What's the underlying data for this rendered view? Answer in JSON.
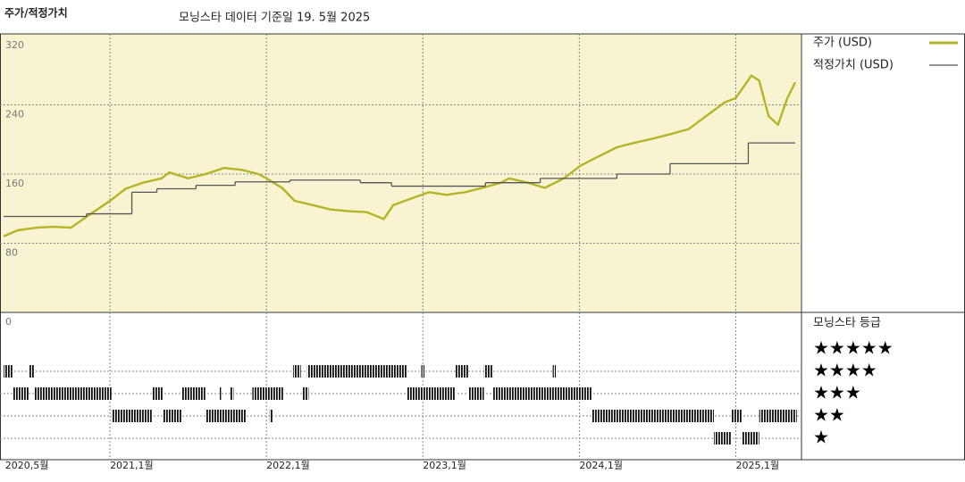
{
  "chart_data": {
    "type": "line",
    "title": "주가/적정가치",
    "subtitle": "모닝스타 데이터 기준일 19. 5월 2025",
    "xlim": [
      2020.32,
      2025.42
    ],
    "xticks": [
      {
        "value": 2020.33,
        "label": "2020,5월"
      },
      {
        "value": 2021,
        "label": "2021,1월"
      },
      {
        "value": 2022,
        "label": "2022,1월"
      },
      {
        "value": 2023,
        "label": "2023,1월"
      },
      {
        "value": 2024,
        "label": "2024,1월"
      },
      {
        "value": 2025,
        "label": "2025,1월"
      }
    ],
    "ylim": [
      0,
      320
    ],
    "yticks": [
      0,
      80,
      160,
      240,
      320
    ],
    "grid": true,
    "series": [
      {
        "name": "주가 (USD)",
        "color": "#b3b526",
        "x": [
          2020.32,
          2020.41,
          2020.53,
          2020.64,
          2020.75,
          2020.87,
          2021.0,
          2021.1,
          2021.21,
          2021.33,
          2021.38,
          2021.5,
          2021.61,
          2021.73,
          2021.84,
          2021.95,
          2022.0,
          2022.1,
          2022.18,
          2022.3,
          2022.41,
          2022.53,
          2022.64,
          2022.75,
          2022.81,
          2022.93,
          2023.04,
          2023.15,
          2023.27,
          2023.38,
          2023.5,
          2023.55,
          2023.67,
          2023.78,
          2023.9,
          2024.01,
          2024.13,
          2024.24,
          2024.35,
          2024.47,
          2024.58,
          2024.7,
          2024.81,
          2024.93,
          2025.0,
          2025.1,
          2025.15,
          2025.21,
          2025.27,
          2025.33,
          2025.38
        ],
        "values": [
          88,
          95,
          98,
          99,
          98,
          113,
          129,
          143,
          150,
          155,
          162,
          155,
          160,
          167,
          165,
          160,
          155,
          144,
          129,
          124,
          119,
          117,
          116,
          108,
          124,
          132,
          139,
          136,
          139,
          144,
          150,
          155,
          150,
          144,
          155,
          170,
          181,
          191,
          196,
          201,
          206,
          212,
          227,
          243,
          248,
          274,
          268,
          227,
          217,
          248,
          266
        ]
      },
      {
        "name": "적정가치 (USD)",
        "color": "#555555",
        "step": "post",
        "x": [
          2020.32,
          2020.85,
          2021.14,
          2021.3,
          2021.55,
          2021.8,
          2022.15,
          2022.6,
          2022.8,
          2023.4,
          2023.75,
          2024.24,
          2024.58,
          2025.08,
          2025.38
        ],
        "values": [
          111,
          114,
          139,
          143,
          147,
          151,
          153,
          150,
          146,
          150,
          155,
          160,
          172,
          196,
          196
        ]
      }
    ],
    "ratings": {
      "title": "모닝스타 등급",
      "levels": [
        {
          "stars": 5,
          "label": "★★★★★"
        },
        {
          "stars": 4,
          "label": "★★★★"
        },
        {
          "stars": 3,
          "label": "★★★"
        },
        {
          "stars": 2,
          "label": "★★"
        },
        {
          "stars": 1,
          "label": "★"
        }
      ],
      "periods": [
        {
          "stars": 4,
          "start": 2020.32,
          "end": 2020.38
        },
        {
          "stars": 4,
          "start": 2020.48,
          "end": 2020.52
        },
        {
          "stars": 4,
          "start": 2022.17,
          "end": 2022.22
        },
        {
          "stars": 4,
          "start": 2022.26,
          "end": 2022.9
        },
        {
          "stars": 4,
          "start": 2022.99,
          "end": 2023.01
        },
        {
          "stars": 4,
          "start": 2023.21,
          "end": 2023.29
        },
        {
          "stars": 4,
          "start": 2023.39,
          "end": 2023.45
        },
        {
          "stars": 4,
          "start": 2023.83,
          "end": 2023.85
        },
        {
          "stars": 3,
          "start": 2020.38,
          "end": 2020.48
        },
        {
          "stars": 3,
          "start": 2020.52,
          "end": 2021.01
        },
        {
          "stars": 3,
          "start": 2021.27,
          "end": 2021.34
        },
        {
          "stars": 3,
          "start": 2021.46,
          "end": 2021.61
        },
        {
          "stars": 3,
          "start": 2021.7,
          "end": 2021.71
        },
        {
          "stars": 3,
          "start": 2021.77,
          "end": 2021.79
        },
        {
          "stars": 3,
          "start": 2021.91,
          "end": 2022.11
        },
        {
          "stars": 3,
          "start": 2022.23,
          "end": 2022.27
        },
        {
          "stars": 3,
          "start": 2022.9,
          "end": 2023.21
        },
        {
          "stars": 3,
          "start": 2023.29,
          "end": 2023.39
        },
        {
          "stars": 3,
          "start": 2023.45,
          "end": 2024.08
        },
        {
          "stars": 2,
          "start": 2021.01,
          "end": 2021.27
        },
        {
          "stars": 2,
          "start": 2021.34,
          "end": 2021.46
        },
        {
          "stars": 2,
          "start": 2021.61,
          "end": 2021.87
        },
        {
          "stars": 2,
          "start": 2022.02,
          "end": 2022.04
        },
        {
          "stars": 2,
          "start": 2024.08,
          "end": 2024.86
        },
        {
          "stars": 2,
          "start": 2024.97,
          "end": 2025.04
        },
        {
          "stars": 2,
          "start": 2025.15,
          "end": 2025.39
        },
        {
          "stars": 1,
          "start": 2024.86,
          "end": 2024.97
        },
        {
          "stars": 1,
          "start": 2025.04,
          "end": 2025.15
        }
      ]
    }
  }
}
